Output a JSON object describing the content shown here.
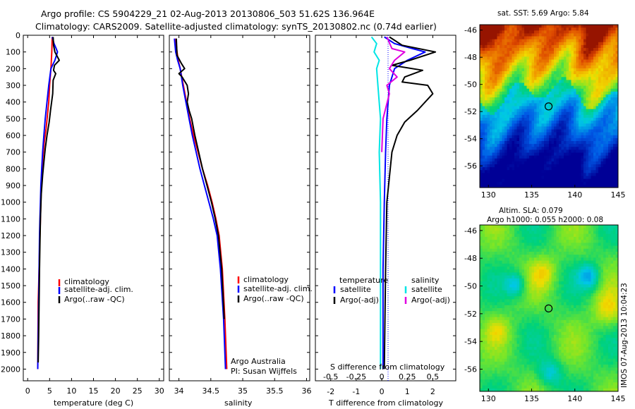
{
  "header": {
    "title1": "Argo profile: CS 5904229_21 02-Aug-2013 20130806_503 51.62S 136.964E",
    "title2": "Climatology: CARS2009. Satellite-adjusted climatology: synTS_20130802.nc (0.74d earlier)"
  },
  "credit": "Argo Australia",
  "pi": "PI: Susan Wijffels",
  "imos_stamp": "IMOS 07-Aug-2013 10:04:23",
  "colors": {
    "climatology": "#ff0000",
    "satellite": "#0000ff",
    "argo": "#000000",
    "cyan": "#00e5e5",
    "magenta": "#e000e0"
  },
  "chart_data": [
    {
      "id": "temperature",
      "type": "line",
      "xlabel": "temperature (deg C)",
      "xlim": [
        -1,
        31
      ],
      "ylim": [
        2070,
        0
      ],
      "xticks": [
        "0",
        "5",
        "10",
        "15",
        "20",
        "25",
        "30"
      ],
      "xtick_values": [
        0,
        5,
        10,
        15,
        20,
        25,
        30
      ],
      "yticks": [
        "0",
        "100",
        "200",
        "300",
        "400",
        "500",
        "600",
        "700",
        "800",
        "900",
        "1000",
        "1100",
        "1200",
        "1300",
        "1400",
        "1500",
        "1600",
        "1700",
        "1800",
        "1900",
        "2000"
      ],
      "legend": [
        "climatology",
        "satellite-adj. clim.",
        "Argo(..raw -QC)"
      ],
      "series": [
        {
          "name": "climatology",
          "color": "#ff0000",
          "x": [
            5.6,
            5.5,
            5.3,
            5.0,
            4.8,
            4.5,
            4.2,
            3.8,
            3.5,
            3.3,
            3.1,
            3.0,
            2.9,
            2.8,
            2.7,
            2.6,
            2.5,
            2.4,
            2.35,
            2.3
          ],
          "y": [
            10,
            100,
            200,
            300,
            400,
            480,
            560,
            640,
            720,
            800,
            900,
            1000,
            1100,
            1200,
            1300,
            1400,
            1500,
            1600,
            1800,
            2000
          ]
        },
        {
          "name": "satellite-adj. clim.",
          "color": "#0000ff",
          "x": [
            5.6,
            6.0,
            6.5,
            6.8,
            6.2,
            5.3,
            4.8,
            4.4,
            4.0,
            3.7,
            3.4,
            3.2,
            3.0,
            2.9,
            2.8,
            2.7,
            2.6,
            2.5,
            2.4,
            2.3
          ],
          "y": [
            10,
            50,
            80,
            100,
            150,
            200,
            300,
            400,
            500,
            600,
            700,
            800,
            900,
            1000,
            1100,
            1200,
            1400,
            1600,
            1800,
            2000
          ]
        },
        {
          "name": "Argo(..raw -QC)",
          "color": "#000000",
          "x": [
            5.8,
            5.9,
            6.2,
            7.2,
            6.1,
            5.9,
            6.4,
            5.8,
            5.7,
            5.2,
            4.9,
            4.4,
            4.0,
            3.7,
            3.4,
            3.1,
            2.9,
            2.8,
            2.7,
            2.6,
            2.5,
            2.4
          ],
          "y": [
            10,
            60,
            100,
            150,
            180,
            210,
            230,
            270,
            350,
            450,
            520,
            600,
            680,
            760,
            840,
            950,
            1100,
            1250,
            1400,
            1600,
            1800,
            1960
          ]
        }
      ]
    },
    {
      "id": "salinity",
      "type": "line",
      "xlabel": "salinity",
      "xlim": [
        33.85,
        36.05
      ],
      "ylim": [
        2070,
        0
      ],
      "xticks": [
        "34",
        "34.5",
        "35",
        "35.5",
        "36"
      ],
      "xtick_values": [
        34,
        34.5,
        35,
        35.5,
        36
      ],
      "legend": [
        "climatology",
        "satellite-adj. clim.",
        "Argo(..raw -QC)"
      ],
      "series": [
        {
          "name": "climatology",
          "color": "#ff0000",
          "x": [
            33.95,
            33.97,
            33.99,
            34.02,
            34.07,
            34.12,
            34.17,
            34.23,
            34.3,
            34.37,
            34.45,
            34.52,
            34.58,
            34.63,
            34.68,
            34.72,
            34.75
          ],
          "y": [
            20,
            100,
            150,
            200,
            300,
            400,
            500,
            600,
            700,
            800,
            900,
            1000,
            1100,
            1200,
            1400,
            1700,
            2000
          ]
        },
        {
          "name": "satellite-adj. clim.",
          "color": "#0000ff",
          "x": [
            33.93,
            33.95,
            33.98,
            34.02,
            34.06,
            34.11,
            34.16,
            34.21,
            34.27,
            34.33,
            34.4,
            34.47,
            34.54,
            34.6,
            34.65,
            34.7,
            34.73
          ],
          "y": [
            20,
            100,
            150,
            200,
            300,
            400,
            500,
            600,
            700,
            800,
            900,
            1000,
            1100,
            1200,
            1400,
            1700,
            2000
          ]
        },
        {
          "name": "Argo(..raw -QC)",
          "color": "#000000",
          "x": [
            33.96,
            33.97,
            34.04,
            34.09,
            34.0,
            34.05,
            34.13,
            34.15,
            34.13,
            34.16,
            34.2,
            34.25,
            34.31,
            34.37,
            34.44,
            34.51,
            34.57,
            34.62,
            34.67,
            34.71
          ],
          "y": [
            20,
            120,
            170,
            200,
            230,
            250,
            300,
            350,
            400,
            450,
            500,
            600,
            700,
            800,
            900,
            1000,
            1100,
            1200,
            1400,
            1700
          ]
        }
      ]
    },
    {
      "id": "difference",
      "type": "line",
      "xlabel": "T difference from climatology",
      "xlabel2": "S difference from climatology",
      "xlim": [
        -2.6,
        2.9
      ],
      "ylim": [
        2070,
        0
      ],
      "xticks": [
        "-2",
        "-1",
        "0",
        "1",
        "2"
      ],
      "xtick_values": [
        -2,
        -1,
        0,
        1,
        2
      ],
      "sticks": [
        "-0.5",
        "-0.25",
        "0",
        "0.25",
        "0.5"
      ],
      "stick_values": [
        -2,
        -1,
        0,
        1,
        2
      ],
      "legend_temperature": "temperature",
      "legend_salinity": "salinity",
      "legend_satellite": "satellite",
      "legend_argo": "Argo(-adj)",
      "series": [
        {
          "name": "T satellite",
          "color": "#0000ff",
          "x": [
            0.1,
            0.5,
            1.2,
            1.7,
            1.0,
            0.5,
            0.3,
            0.2,
            0.15,
            0.1,
            0.05,
            0.05,
            0.05
          ],
          "y": [
            10,
            50,
            80,
            100,
            150,
            200,
            300,
            500,
            700,
            1000,
            1400,
            1700,
            2000
          ]
        },
        {
          "name": "T Argo(-adj)",
          "color": "#000000",
          "x": [
            0.3,
            0.8,
            2.1,
            1.1,
            0.4,
            1.6,
            0.9,
            0.8,
            1.8,
            2.0,
            1.4,
            0.9,
            0.6,
            0.4,
            0.3,
            0.2,
            0.15,
            0.1
          ],
          "y": [
            10,
            60,
            100,
            150,
            180,
            210,
            250,
            280,
            300,
            350,
            450,
            520,
            600,
            700,
            850,
            1000,
            1400,
            2000
          ]
        },
        {
          "name": "S satellite",
          "color": "#00e5e5",
          "x": [
            -0.4,
            -0.2,
            -0.3,
            -0.1,
            -0.2,
            -0.15,
            -0.05,
            -0.1,
            -0.05,
            -0.05,
            -0.05,
            -0.05
          ],
          "y": [
            10,
            50,
            100,
            150,
            200,
            300,
            500,
            700,
            1000,
            1400,
            1700,
            2000
          ]
        },
        {
          "name": "S Argo(-adj)",
          "color": "#e000e0",
          "x": [
            0.2,
            0.4,
            0.9,
            0.5,
            0.3,
            0.6,
            0.2,
            0.3,
            0.05,
            0.0
          ],
          "y": [
            10,
            80,
            100,
            150,
            200,
            250,
            300,
            350,
            500,
            700
          ]
        }
      ]
    },
    {
      "id": "sst_map",
      "type": "heatmap",
      "title": "sat. SST: 5.69 Argo: 5.84",
      "xticks": [
        "130",
        "135",
        "140",
        "145"
      ],
      "xtick_values": [
        130,
        135,
        140,
        145
      ],
      "yticks": [
        "-46",
        "-48",
        "-50",
        "-52",
        "-54",
        "-56"
      ],
      "ytick_values": [
        -46,
        -48,
        -50,
        -52,
        -54,
        -56
      ],
      "xlim": [
        129,
        145
      ],
      "ylim": [
        -57.6,
        -45.6
      ],
      "marker": {
        "lon": 136.964,
        "lat": -51.62
      }
    },
    {
      "id": "sla_map",
      "type": "heatmap",
      "title1": "Altim. SLA: 0.079",
      "title2": "Argo h1000: 0.055 h2000: 0.08",
      "xticks": [
        "130",
        "135",
        "140",
        "145"
      ],
      "xtick_values": [
        130,
        135,
        140,
        145
      ],
      "yticks": [
        "-46",
        "-48",
        "-50",
        "-52",
        "-54",
        "-56"
      ],
      "ytick_values": [
        -46,
        -48,
        -50,
        -52,
        -54,
        -56
      ],
      "xlim": [
        129,
        145
      ],
      "ylim": [
        -57.6,
        -45.6
      ],
      "marker": {
        "lon": 136.964,
        "lat": -51.62
      }
    }
  ]
}
